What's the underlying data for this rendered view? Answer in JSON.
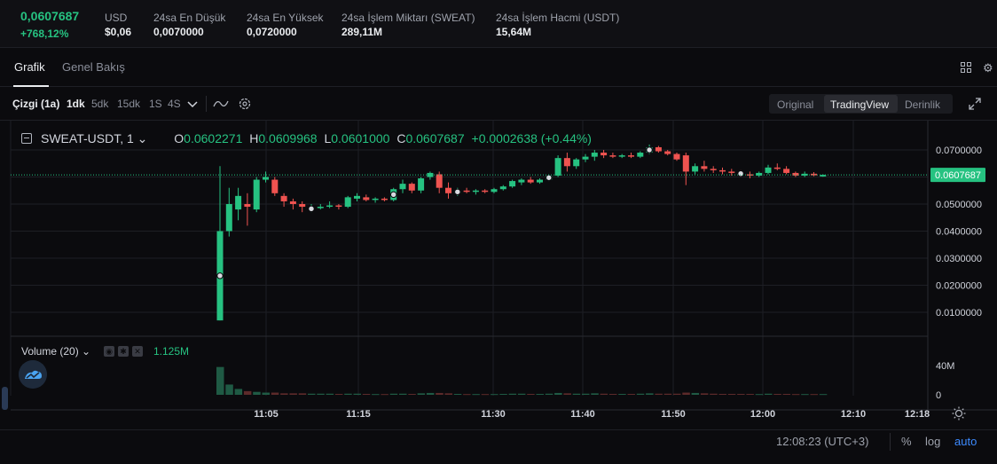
{
  "ticker": {
    "last_price": "0,0607687",
    "change_pct": "+768,12%",
    "usd_label": "USD",
    "usd_value": "$0,06",
    "low_label": "24sa En Düşük",
    "low_value": "0,0070000",
    "high_label": "24sa En Yüksek",
    "high_value": "0,0720000",
    "vol_base_label": "24sa İşlem Miktarı (SWEAT)",
    "vol_base_value": "289,11M",
    "vol_quote_label": "24sa İşlem Hacmi (USDT)",
    "vol_quote_value": "15,64M"
  },
  "tabs": [
    {
      "label": "Grafik",
      "active": true
    },
    {
      "label": "Genel Bakış",
      "active": false
    }
  ],
  "toolbar": {
    "chart_type": "Çizgi (1a)",
    "intervals": [
      "1dk",
      "5dk",
      "15dk",
      "1S",
      "4S"
    ],
    "active_interval": "1dk",
    "views": [
      "Original",
      "TradingView",
      "Derinlik"
    ],
    "active_view": "TradingView"
  },
  "icons": {
    "layout": "grid-icon",
    "settings": "gear-icon",
    "indicators": "wave-icon",
    "expand": "expand-icon"
  },
  "legend": {
    "symbol": "SWEAT-USDT, 1",
    "o_label": "O",
    "o_value": "0.0602271",
    "h_label": "H",
    "h_value": "0.0609968",
    "l_label": "L",
    "l_value": "0.0601000",
    "c_label": "C",
    "c_value": "0.0607687",
    "change": "+0.0002638 (+0.44%)"
  },
  "volume": {
    "label": "Volume (20)",
    "value": "1.125M"
  },
  "bottom": {
    "time": "12:08:23 (UTC+3)",
    "percent": "%",
    "log": "log",
    "auto": "auto"
  },
  "colors": {
    "up": "#26c281",
    "down": "#ef5350",
    "background": "#0b0b0e",
    "grid": "#1e1f25",
    "price_line": "#26c281"
  },
  "chart_data": {
    "type": "candlestick",
    "price_axis_ticks": [
      "0.0700000",
      "0.0600000",
      "0.0500000",
      "0.0400000",
      "0.0300000",
      "0.0200000",
      "0.0100000"
    ],
    "price_axis_values": [
      0.07,
      0.06,
      0.05,
      0.04,
      0.03,
      0.02,
      0.01
    ],
    "last_price_label": "0.0607687",
    "last_price": 0.0607687,
    "volume_axis_ticks": [
      "40M",
      "0"
    ],
    "volume_axis_values": [
      40,
      0
    ],
    "time_ticks": [
      "11:05",
      "11:15",
      "11:30",
      "11:40",
      "11:50",
      "12:00",
      "12:10",
      "12:18"
    ],
    "candles": [
      {
        "o": 0.007,
        "h": 0.064,
        "l": 0.007,
        "c": 0.04,
        "v": 38
      },
      {
        "o": 0.04,
        "h": 0.056,
        "l": 0.038,
        "c": 0.05,
        "v": 14
      },
      {
        "o": 0.048,
        "h": 0.056,
        "l": 0.044,
        "c": 0.053,
        "v": 8
      },
      {
        "o": 0.05,
        "h": 0.054,
        "l": 0.042,
        "c": 0.049,
        "v": 5
      },
      {
        "o": 0.048,
        "h": 0.06,
        "l": 0.047,
        "c": 0.059,
        "v": 4
      },
      {
        "o": 0.059,
        "h": 0.062,
        "l": 0.058,
        "c": 0.06,
        "v": 3
      },
      {
        "o": 0.059,
        "h": 0.06,
        "l": 0.053,
        "c": 0.054,
        "v": 3
      },
      {
        "o": 0.053,
        "h": 0.054,
        "l": 0.049,
        "c": 0.051,
        "v": 2
      },
      {
        "o": 0.051,
        "h": 0.052,
        "l": 0.048,
        "c": 0.05,
        "v": 2
      },
      {
        "o": 0.05,
        "h": 0.051,
        "l": 0.047,
        "c": 0.049,
        "v": 2
      },
      {
        "o": 0.048,
        "h": 0.05,
        "l": 0.047,
        "c": 0.0485,
        "v": 1.5
      },
      {
        "o": 0.0485,
        "h": 0.05,
        "l": 0.048,
        "c": 0.049,
        "v": 1.5
      },
      {
        "o": 0.049,
        "h": 0.051,
        "l": 0.0485,
        "c": 0.0495,
        "v": 1.5
      },
      {
        "o": 0.0495,
        "h": 0.05,
        "l": 0.048,
        "c": 0.049,
        "v": 1.2
      },
      {
        "o": 0.049,
        "h": 0.053,
        "l": 0.0485,
        "c": 0.0525,
        "v": 1.5
      },
      {
        "o": 0.052,
        "h": 0.054,
        "l": 0.051,
        "c": 0.053,
        "v": 1.5
      },
      {
        "o": 0.0525,
        "h": 0.0535,
        "l": 0.051,
        "c": 0.0515,
        "v": 1.2
      },
      {
        "o": 0.0515,
        "h": 0.0525,
        "l": 0.0505,
        "c": 0.052,
        "v": 1
      },
      {
        "o": 0.052,
        "h": 0.0525,
        "l": 0.051,
        "c": 0.0515,
        "v": 1
      },
      {
        "o": 0.0515,
        "h": 0.056,
        "l": 0.051,
        "c": 0.0555,
        "v": 1.5
      },
      {
        "o": 0.0555,
        "h": 0.059,
        "l": 0.054,
        "c": 0.0575,
        "v": 1.5
      },
      {
        "o": 0.0575,
        "h": 0.058,
        "l": 0.054,
        "c": 0.055,
        "v": 1.2
      },
      {
        "o": 0.055,
        "h": 0.06,
        "l": 0.054,
        "c": 0.0595,
        "v": 2
      },
      {
        "o": 0.06,
        "h": 0.062,
        "l": 0.059,
        "c": 0.0615,
        "v": 2.5
      },
      {
        "o": 0.061,
        "h": 0.062,
        "l": 0.054,
        "c": 0.056,
        "v": 2.5
      },
      {
        "o": 0.056,
        "h": 0.058,
        "l": 0.052,
        "c": 0.054,
        "v": 2
      },
      {
        "o": 0.054,
        "h": 0.056,
        "l": 0.053,
        "c": 0.055,
        "v": 1.2
      },
      {
        "o": 0.055,
        "h": 0.056,
        "l": 0.054,
        "c": 0.0545,
        "v": 1
      },
      {
        "o": 0.0545,
        "h": 0.0555,
        "l": 0.0535,
        "c": 0.055,
        "v": 1
      },
      {
        "o": 0.055,
        "h": 0.0555,
        "l": 0.054,
        "c": 0.0545,
        "v": 1
      },
      {
        "o": 0.0545,
        "h": 0.056,
        "l": 0.054,
        "c": 0.0555,
        "v": 1
      },
      {
        "o": 0.0555,
        "h": 0.057,
        "l": 0.055,
        "c": 0.0565,
        "v": 1.2
      },
      {
        "o": 0.0565,
        "h": 0.059,
        "l": 0.056,
        "c": 0.0585,
        "v": 1.5
      },
      {
        "o": 0.058,
        "h": 0.0595,
        "l": 0.057,
        "c": 0.059,
        "v": 1.5
      },
      {
        "o": 0.059,
        "h": 0.06,
        "l": 0.0575,
        "c": 0.058,
        "v": 1.2
      },
      {
        "o": 0.058,
        "h": 0.0595,
        "l": 0.0575,
        "c": 0.059,
        "v": 1.2
      },
      {
        "o": 0.059,
        "h": 0.061,
        "l": 0.0585,
        "c": 0.0605,
        "v": 1.5
      },
      {
        "o": 0.0605,
        "h": 0.068,
        "l": 0.06,
        "c": 0.067,
        "v": 2.5
      },
      {
        "o": 0.067,
        "h": 0.069,
        "l": 0.062,
        "c": 0.064,
        "v": 2
      },
      {
        "o": 0.064,
        "h": 0.067,
        "l": 0.063,
        "c": 0.0665,
        "v": 1.5
      },
      {
        "o": 0.0665,
        "h": 0.0685,
        "l": 0.0655,
        "c": 0.0675,
        "v": 1.5
      },
      {
        "o": 0.0675,
        "h": 0.07,
        "l": 0.066,
        "c": 0.069,
        "v": 2
      },
      {
        "o": 0.069,
        "h": 0.07,
        "l": 0.067,
        "c": 0.068,
        "v": 1.5
      },
      {
        "o": 0.068,
        "h": 0.069,
        "l": 0.067,
        "c": 0.0675,
        "v": 1.2
      },
      {
        "o": 0.0675,
        "h": 0.0685,
        "l": 0.067,
        "c": 0.068,
        "v": 1.2
      },
      {
        "o": 0.068,
        "h": 0.069,
        "l": 0.067,
        "c": 0.0675,
        "v": 1.2
      },
      {
        "o": 0.0675,
        "h": 0.0695,
        "l": 0.067,
        "c": 0.069,
        "v": 1.5
      },
      {
        "o": 0.069,
        "h": 0.072,
        "l": 0.0685,
        "c": 0.071,
        "v": 2
      },
      {
        "o": 0.071,
        "h": 0.0715,
        "l": 0.069,
        "c": 0.0695,
        "v": 1.5
      },
      {
        "o": 0.0695,
        "h": 0.07,
        "l": 0.068,
        "c": 0.0685,
        "v": 1.5
      },
      {
        "o": 0.0685,
        "h": 0.069,
        "l": 0.066,
        "c": 0.0665,
        "v": 1.5
      },
      {
        "o": 0.068,
        "h": 0.069,
        "l": 0.057,
        "c": 0.062,
        "v": 3
      },
      {
        "o": 0.062,
        "h": 0.065,
        "l": 0.061,
        "c": 0.064,
        "v": 2.5
      },
      {
        "o": 0.064,
        "h": 0.066,
        "l": 0.062,
        "c": 0.063,
        "v": 2
      },
      {
        "o": 0.063,
        "h": 0.064,
        "l": 0.0615,
        "c": 0.0625,
        "v": 1.5
      },
      {
        "o": 0.0625,
        "h": 0.0635,
        "l": 0.061,
        "c": 0.062,
        "v": 1.2
      },
      {
        "o": 0.062,
        "h": 0.063,
        "l": 0.0605,
        "c": 0.0615,
        "v": 1.2
      },
      {
        "o": 0.0615,
        "h": 0.0625,
        "l": 0.06,
        "c": 0.061,
        "v": 1.2
      },
      {
        "o": 0.061,
        "h": 0.062,
        "l": 0.0595,
        "c": 0.0605,
        "v": 1.2
      },
      {
        "o": 0.0605,
        "h": 0.062,
        "l": 0.06,
        "c": 0.0615,
        "v": 1
      },
      {
        "o": 0.0615,
        "h": 0.0645,
        "l": 0.061,
        "c": 0.0635,
        "v": 1.5
      },
      {
        "o": 0.0635,
        "h": 0.065,
        "l": 0.0625,
        "c": 0.063,
        "v": 1.2
      },
      {
        "o": 0.063,
        "h": 0.064,
        "l": 0.061,
        "c": 0.0615,
        "v": 1.2
      },
      {
        "o": 0.0615,
        "h": 0.062,
        "l": 0.06,
        "c": 0.0605,
        "v": 1
      },
      {
        "o": 0.0605,
        "h": 0.062,
        "l": 0.06,
        "c": 0.0612,
        "v": 1
      },
      {
        "o": 0.0612,
        "h": 0.0618,
        "l": 0.0603,
        "c": 0.0606,
        "v": 1
      },
      {
        "o": 0.0602,
        "h": 0.061,
        "l": 0.0601,
        "c": 0.0608,
        "v": 1
      }
    ],
    "markers": [
      0,
      10,
      19,
      26,
      36,
      47,
      57
    ]
  }
}
